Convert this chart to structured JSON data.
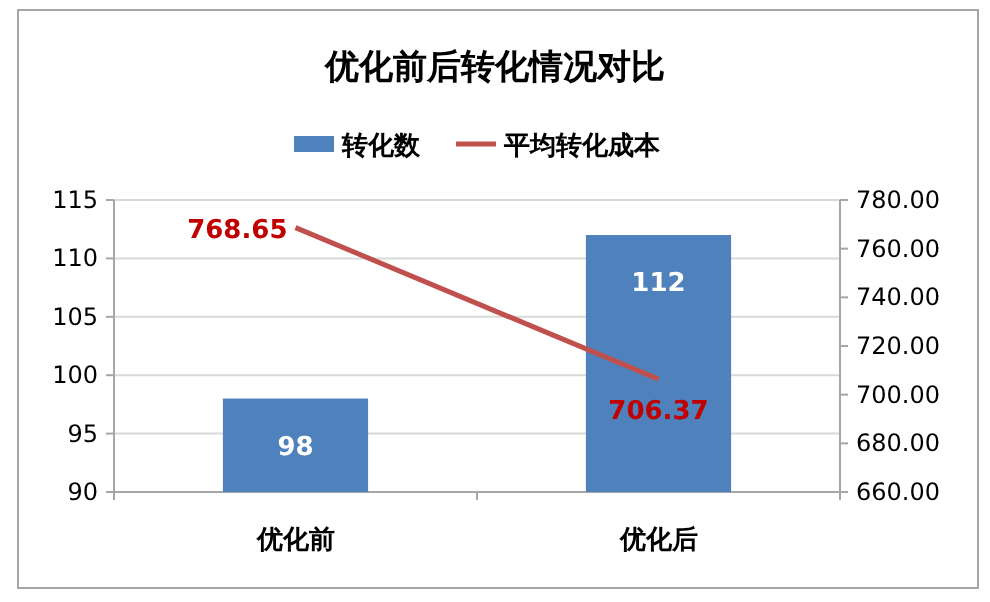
{
  "chart_data": {
    "type": "bar",
    "title": "优化前后转化情况对比",
    "categories": [
      "优化前",
      "优化后"
    ],
    "series": [
      {
        "name": "转化数",
        "color": "#4f81bd",
        "values": [
          98,
          112
        ]
      },
      {
        "name": "平均转化成本",
        "type": "line",
        "axis": "y2",
        "color": "#c0504d",
        "values": [
          768.65,
          706.37
        ]
      }
    ],
    "ylim": [
      90,
      115
    ],
    "yticks": [
      90,
      95,
      100,
      105,
      110,
      115
    ],
    "y2lim": [
      660,
      780
    ],
    "y2ticks": [
      {
        "value": 660,
        "label": "660.00"
      },
      {
        "value": 680,
        "label": "680.00"
      },
      {
        "value": 700,
        "label": "700.00"
      },
      {
        "value": 720,
        "label": "720.00"
      },
      {
        "value": 740,
        "label": "740.00"
      },
      {
        "value": 760,
        "label": "760.00"
      },
      {
        "value": 780,
        "label": "780.00"
      }
    ],
    "grid": "y",
    "legend": "top",
    "data_labels": true,
    "marker": "none",
    "line_style": "solid"
  }
}
